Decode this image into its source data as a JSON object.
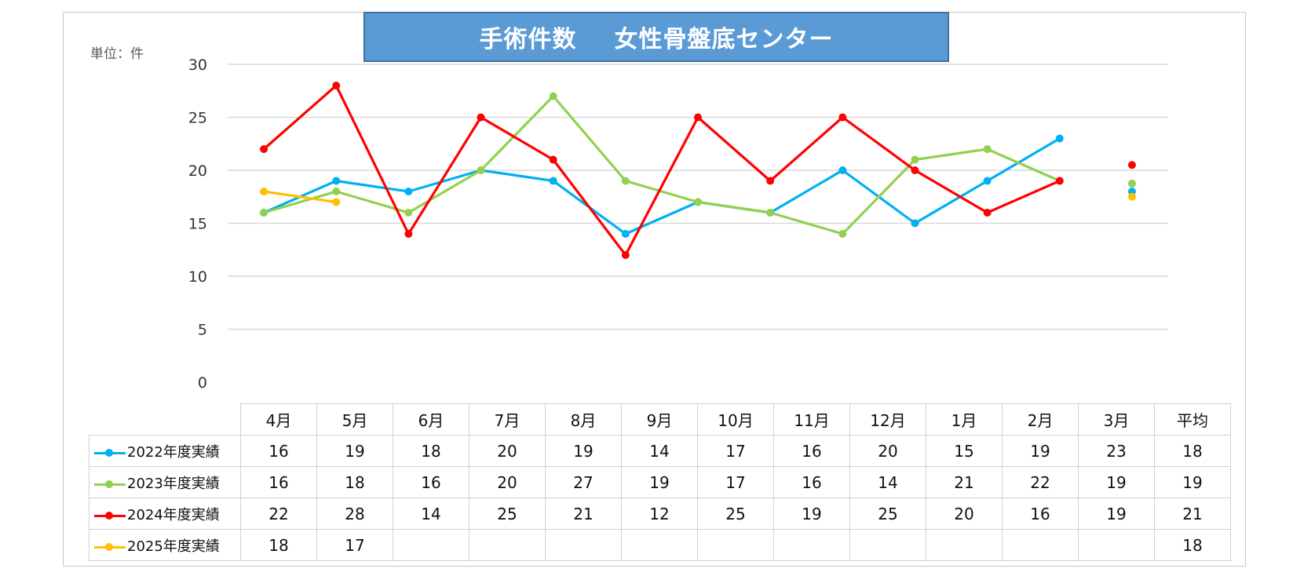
{
  "title_part1": "手術件数",
  "title_part2": "女性骨盤底センター",
  "unit_label": "単位：件",
  "chart_data": {
    "type": "line",
    "title": "手術件数　女性骨盤底センター",
    "ylabel": "単位：件",
    "ylim": [
      0,
      30
    ],
    "yticks": [
      0,
      5,
      10,
      15,
      20,
      25,
      30
    ],
    "grid": true,
    "categories": [
      "4月",
      "5月",
      "6月",
      "7月",
      "8月",
      "9月",
      "10月",
      "11月",
      "12月",
      "1月",
      "2月",
      "3月"
    ],
    "average_label": "平均",
    "series": [
      {
        "name": "2022年度実績",
        "color": "#00b0f0",
        "values": [
          16,
          19,
          18,
          20,
          19,
          14,
          17,
          16,
          20,
          15,
          19,
          23
        ],
        "average": 18,
        "average_display": "18",
        "average_plot": 18.0
      },
      {
        "name": "2023年度実績",
        "color": "#92d050",
        "values": [
          16,
          18,
          16,
          20,
          27,
          19,
          17,
          16,
          14,
          21,
          22,
          19
        ],
        "average": 19,
        "average_display": "19",
        "average_plot": 18.75
      },
      {
        "name": "2024年度実績",
        "color": "#ff0000",
        "values": [
          22,
          28,
          14,
          25,
          21,
          12,
          25,
          19,
          25,
          20,
          16,
          19
        ],
        "average": 21,
        "average_display": "21",
        "average_plot": 20.5
      },
      {
        "name": "2025年度実績",
        "color": "#ffc000",
        "values": [
          18,
          17,
          null,
          null,
          null,
          null,
          null,
          null,
          null,
          null,
          null,
          null
        ],
        "average": 18,
        "average_display": "18",
        "average_plot": 17.5
      }
    ]
  }
}
